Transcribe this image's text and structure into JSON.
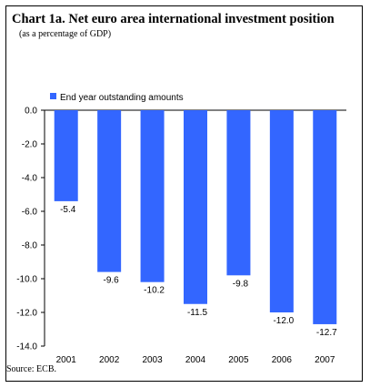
{
  "title": "Chart 1a. Net euro area international investment position",
  "subtitle": "(as a percentage of GDP)",
  "source": "Source: ECB.",
  "colors": {
    "bar": "#3366ff",
    "axis": "#000000"
  },
  "chart_data": {
    "type": "bar",
    "categories": [
      "2001",
      "2002",
      "2003",
      "2004",
      "2005",
      "2006",
      "2007"
    ],
    "series": [
      {
        "name": "End year outstanding amounts",
        "values": [
          -5.4,
          -9.6,
          -10.2,
          -11.5,
          -9.8,
          -12.0,
          -12.7
        ]
      }
    ],
    "data_labels": [
      "-5.4",
      "-9.6",
      "-10.2",
      "-11.5",
      "-9.8",
      "-12.0",
      "-12.7"
    ],
    "yticks": [
      "0.0",
      "-2.0",
      "-4.0",
      "-6.0",
      "-8.0",
      "-10.0",
      "-12.0",
      "-14.0"
    ],
    "ylim": [
      -14,
      0
    ],
    "grid": false,
    "legend": "top-left"
  }
}
